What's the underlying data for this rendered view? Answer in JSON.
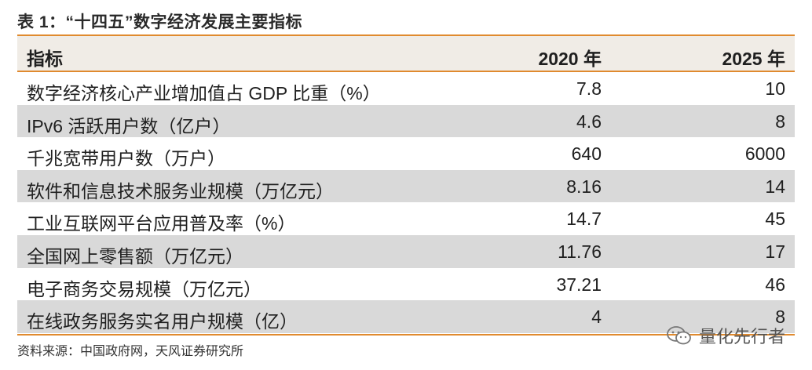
{
  "title": "表 1：“十四五”数字经济发展主要指标",
  "table": {
    "headers": {
      "indicator": "指标",
      "y2020": "2020 年",
      "y2025": "2025 年"
    },
    "rows": [
      {
        "indicator": "数字经济核心产业增加值占 GDP 比重（%）",
        "y2020": "7.8",
        "y2025": "10"
      },
      {
        "indicator": "IPv6 活跃用户数（亿户）",
        "y2020": "4.6",
        "y2025": "8"
      },
      {
        "indicator": "千兆宽带用户数（万户）",
        "y2020": "640",
        "y2025": "6000"
      },
      {
        "indicator": "软件和信息技术服务业规模（万亿元）",
        "y2020": "8.16",
        "y2025": "14"
      },
      {
        "indicator": "工业互联网平台应用普及率（%）",
        "y2020": "14.7",
        "y2025": "45"
      },
      {
        "indicator": "全国网上零售额（万亿元）",
        "y2020": "11.76",
        "y2025": "17"
      },
      {
        "indicator": "电子商务交易规模（万亿元）",
        "y2020": "37.21",
        "y2025": "46"
      },
      {
        "indicator": "在线政务服务实名用户规模（亿）",
        "y2020": "4",
        "y2025": "8"
      }
    ]
  },
  "source": "资料来源：中国政府网，天风证券研究所",
  "watermark": "量化先行者",
  "colors": {
    "accent": "#e08a2e",
    "shaded_row": "#d9d9d9",
    "header_bg": "#f0ece6"
  }
}
